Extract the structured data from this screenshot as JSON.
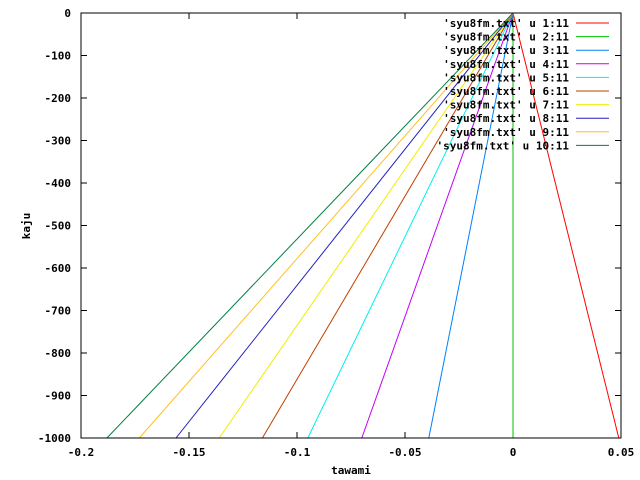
{
  "chart_data": {
    "type": "line",
    "title": "",
    "xlabel": "tawami",
    "ylabel": "kaju",
    "xlim": [
      -0.2,
      0.05
    ],
    "ylim": [
      -1000,
      0
    ],
    "x_ticks": [
      -0.2,
      -0.15,
      -0.1,
      -0.05,
      0,
      0.05
    ],
    "x_tick_labels": [
      "-0.2",
      "-0.15",
      "-0.1",
      "-0.05",
      "0",
      "0.05"
    ],
    "y_ticks": [
      0,
      -100,
      -200,
      -300,
      -400,
      -500,
      -600,
      -700,
      -800,
      -900,
      -1000
    ],
    "y_tick_labels": [
      "0",
      "-100",
      "-200",
      "-300",
      "-400",
      "-500",
      "-600",
      "-700",
      "-800",
      "-900",
      "-1000"
    ],
    "grid": false,
    "legend_position": "top-right",
    "series": [
      {
        "name": "'syu8fm.txt' u 1:11",
        "color": "#ff0000",
        "x": [
          0,
          0.049
        ],
        "y": [
          0,
          -1000
        ]
      },
      {
        "name": "'syu8fm.txt' u 2:11",
        "color": "#00c000",
        "x": [
          0,
          0
        ],
        "y": [
          0,
          -1000
        ]
      },
      {
        "name": "'syu8fm.txt' u 3:11",
        "color": "#0080ff",
        "x": [
          0,
          -0.039
        ],
        "y": [
          0,
          -1000
        ]
      },
      {
        "name": "'syu8fm.txt' u 4:11",
        "color": "#c000ff",
        "x": [
          0,
          -0.07
        ],
        "y": [
          0,
          -1000
        ]
      },
      {
        "name": "'syu8fm.txt' u 5:11",
        "color": "#00eeee",
        "x": [
          0,
          -0.095
        ],
        "y": [
          0,
          -1000
        ]
      },
      {
        "name": "'syu8fm.txt' u 6:11",
        "color": "#c04000",
        "x": [
          0,
          -0.116
        ],
        "y": [
          0,
          -1000
        ]
      },
      {
        "name": "'syu8fm.txt' u 7:11",
        "color": "#eeee00",
        "x": [
          0,
          -0.136
        ],
        "y": [
          0,
          -1000
        ]
      },
      {
        "name": "'syu8fm.txt' u 8:11",
        "color": "#2020c0",
        "x": [
          0,
          -0.156
        ],
        "y": [
          0,
          -1000
        ]
      },
      {
        "name": "'syu8fm.txt' u 9:11",
        "color": "#ffc020",
        "x": [
          0,
          -0.173
        ],
        "y": [
          0,
          -1000
        ]
      },
      {
        "name": "'syu8fm.txt' u 10:11",
        "color": "#008040",
        "x": [
          0,
          -0.188
        ],
        "y": [
          0,
          -1000
        ]
      }
    ]
  }
}
